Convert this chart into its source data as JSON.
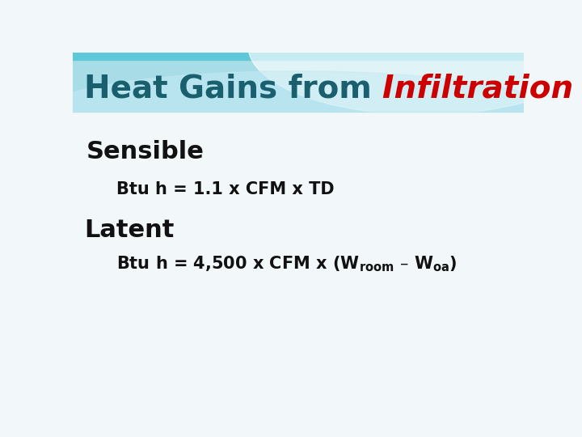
{
  "title_part1": "Heat Gains from ",
  "title_part2": "Infiltration Loads",
  "title_color1": "#1a5f6e",
  "title_color2": "#cc0000",
  "title_fontsize": 28,
  "sensible_label": "Sensible",
  "sensible_fontsize": 22,
  "sensible_eq": "Btu h = 1.1 x CFM x TD",
  "sensible_eq_fontsize": 15,
  "latent_label": "Latent",
  "latent_fontsize": 22,
  "latent_eq_fontsize": 15,
  "header_bg": "#a8dde8",
  "header_top": "#5ec8d8",
  "wave_white": "#ffffff",
  "wave_light": "#c5eaf3",
  "text_color": "#111111",
  "body_bg": "#f2f8fa"
}
